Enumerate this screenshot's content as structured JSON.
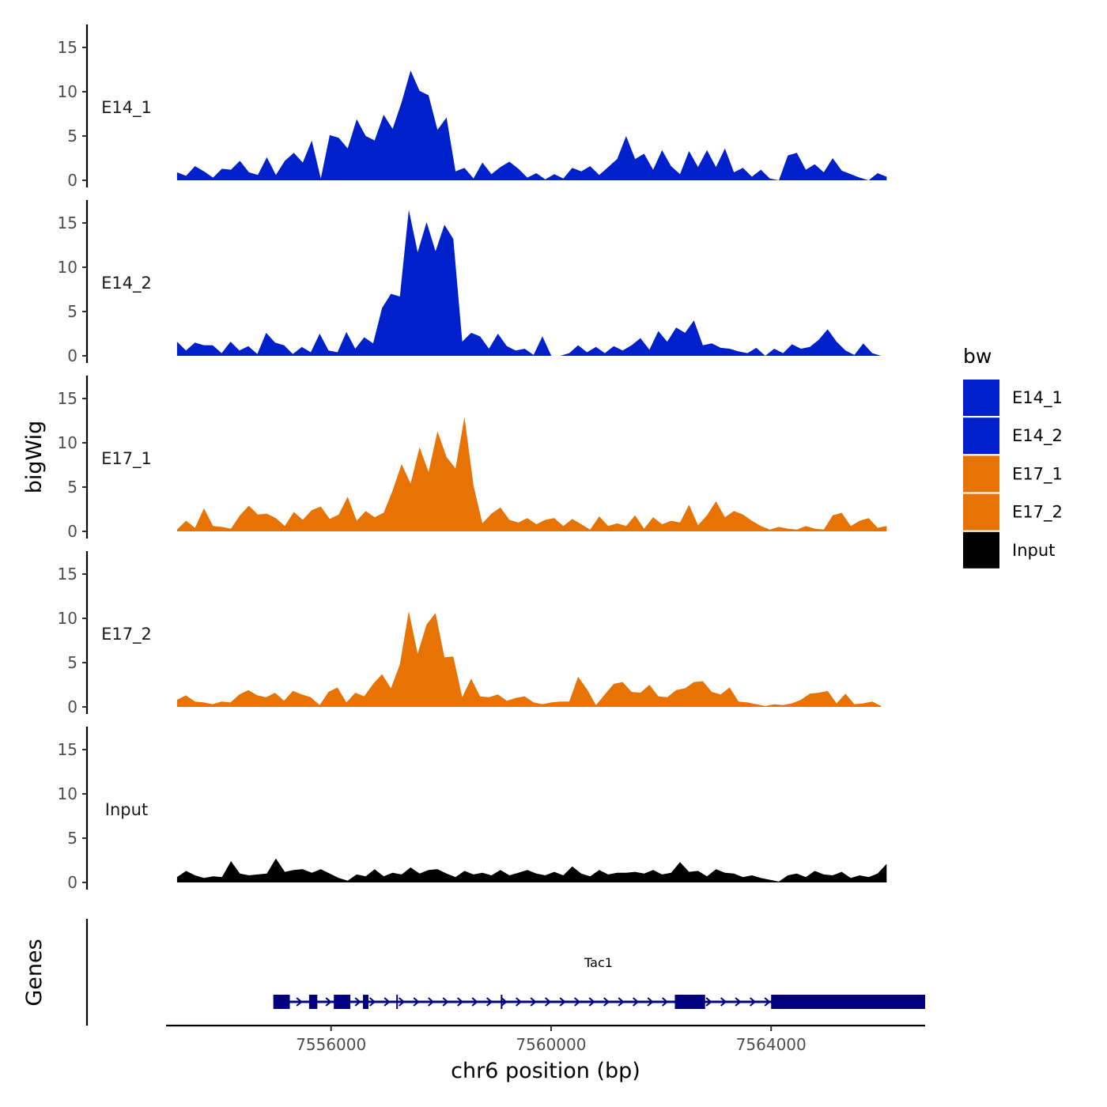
{
  "chart_data": {
    "type": "area",
    "ylabel": "bigWig",
    "xlabel": "chr6 position (bp)",
    "chromosome": "chr6",
    "xlim": [
      7553000,
      7566800
    ],
    "ylim": [
      0,
      17.5
    ],
    "yticks": [
      0,
      5,
      10,
      15
    ],
    "xticks": [
      7556000,
      7560000,
      7564000
    ],
    "xtick_labels": [
      "7556000",
      "7560000",
      "7564000"
    ],
    "legend": {
      "title": "bw",
      "position": "right",
      "entries": [
        {
          "name": "E14_1",
          "color": "#0020CC"
        },
        {
          "name": "E14_2",
          "color": "#0020CC"
        },
        {
          "name": "E17_1",
          "color": "#E87305"
        },
        {
          "name": "E17_2",
          "color": "#E87305"
        },
        {
          "name": "Input",
          "color": "#000000"
        }
      ]
    },
    "series": [
      {
        "name": "E14_1",
        "color": "#0020CC",
        "x_start": 7553200,
        "x_end": 7566100,
        "values": [
          0.9,
          0.5,
          1.6,
          1.0,
          0.3,
          1.3,
          1.2,
          2.2,
          0.9,
          0.6,
          2.6,
          0.6,
          2.2,
          3.1,
          2.0,
          4.5,
          0.2,
          5.1,
          4.8,
          3.6,
          6.9,
          5.0,
          4.5,
          7.4,
          5.8,
          8.8,
          12.4,
          10.1,
          9.6,
          5.7,
          7.1,
          1.0,
          1.4,
          0.2,
          2.0,
          0.7,
          1.5,
          2.1,
          1.3,
          0.3,
          0.8,
          0.1,
          0.7,
          0.2,
          1.4,
          1.0,
          1.6,
          0.6,
          1.5,
          2.4,
          5.0,
          2.4,
          3.0,
          1.2,
          3.4,
          1.6,
          0.7,
          3.3,
          1.5,
          3.4,
          1.5,
          3.6,
          0.9,
          1.4,
          0.4,
          1.2,
          0.2,
          0.0,
          2.8,
          3.1,
          1.2,
          1.8,
          0.9,
          2.5,
          1.1,
          0.7,
          0.3,
          0.0,
          0.8,
          0.4
        ]
      },
      {
        "name": "E14_2",
        "color": "#0020CC",
        "x_start": 7553200,
        "x_end": 7566000,
        "values": [
          1.6,
          0.6,
          1.5,
          1.2,
          1.2,
          0.3,
          1.6,
          0.6,
          1.1,
          0.2,
          2.6,
          1.5,
          1.2,
          0.2,
          1.0,
          0.4,
          2.5,
          0.6,
          0.4,
          2.7,
          0.8,
          2.1,
          1.4,
          5.4,
          7.0,
          6.7,
          16.5,
          11.7,
          15.1,
          11.8,
          14.8,
          13.2,
          1.6,
          2.6,
          2.2,
          0.8,
          2.5,
          1.1,
          0.6,
          0.8,
          0.1,
          2.2,
          0.0,
          0.0,
          0.3,
          1.2,
          0.4,
          1.0,
          0.3,
          1.1,
          0.6,
          1.2,
          2.0,
          0.7,
          2.8,
          1.6,
          3.2,
          2.6,
          4.0,
          1.2,
          1.4,
          0.9,
          0.8,
          0.5,
          0.3,
          0.9,
          0.0,
          0.8,
          0.3,
          1.3,
          0.8,
          1.0,
          1.8,
          3.0,
          1.6,
          0.6,
          0.1,
          1.4,
          0.3,
          0.0
        ]
      },
      {
        "name": "E17_1",
        "color": "#E87305",
        "x_start": 7553200,
        "x_end": 7566100,
        "values": [
          0.2,
          1.2,
          0.4,
          2.6,
          0.6,
          0.5,
          0.3,
          1.8,
          2.9,
          1.9,
          2.0,
          1.5,
          0.6,
          2.2,
          1.3,
          2.4,
          2.8,
          1.4,
          1.9,
          3.9,
          1.2,
          2.3,
          1.6,
          2.1,
          4.6,
          7.6,
          5.4,
          9.5,
          6.7,
          11.3,
          8.4,
          7.1,
          12.9,
          5.2,
          0.9,
          2.0,
          2.7,
          1.3,
          1.0,
          1.5,
          0.8,
          1.3,
          1.5,
          0.6,
          1.4,
          0.8,
          0.2,
          1.7,
          0.6,
          0.9,
          0.6,
          1.8,
          0.3,
          1.6,
          0.8,
          1.2,
          1.0,
          3.0,
          0.7,
          1.8,
          3.4,
          1.6,
          2.3,
          1.9,
          1.2,
          0.6,
          0.2,
          0.5,
          0.3,
          0.2,
          0.6,
          0.3,
          0.2,
          1.8,
          2.1,
          0.6,
          1.2,
          1.5,
          0.4,
          0.6
        ]
      },
      {
        "name": "E17_2",
        "color": "#E87305",
        "x_start": 7553200,
        "x_end": 7566000,
        "values": [
          0.8,
          1.3,
          0.6,
          0.5,
          0.3,
          0.6,
          0.5,
          1.4,
          1.9,
          1.3,
          1.1,
          1.6,
          0.7,
          1.8,
          1.4,
          1.1,
          0.2,
          1.7,
          2.2,
          0.5,
          1.6,
          1.2,
          2.6,
          3.7,
          2.1,
          4.8,
          10.8,
          6.0,
          9.3,
          10.6,
          5.6,
          5.7,
          1.1,
          3.2,
          1.2,
          1.1,
          1.4,
          0.7,
          1.0,
          1.2,
          0.5,
          0.3,
          0.5,
          0.6,
          0.6,
          3.4,
          2.0,
          0.2,
          1.4,
          2.6,
          2.8,
          1.7,
          1.6,
          2.5,
          1.2,
          1.1,
          1.9,
          2.1,
          2.8,
          2.9,
          1.7,
          1.4,
          2.2,
          0.6,
          0.5,
          0.3,
          0.1,
          0.3,
          0.2,
          0.4,
          0.8,
          1.5,
          1.6,
          1.8,
          0.4,
          1.5,
          0.3,
          0.4,
          0.6,
          0.1
        ]
      },
      {
        "name": "Input",
        "color": "#000000",
        "x_start": 7553200,
        "x_end": 7566100,
        "values": [
          0.6,
          1.3,
          0.8,
          0.5,
          0.7,
          0.6,
          2.4,
          1.0,
          0.8,
          0.9,
          1.0,
          2.7,
          1.2,
          1.4,
          1.5,
          1.1,
          1.5,
          1.0,
          0.5,
          0.2,
          0.9,
          0.7,
          1.5,
          0.7,
          1.1,
          0.9,
          1.7,
          1.0,
          1.4,
          1.5,
          1.0,
          0.6,
          1.3,
          0.9,
          1.1,
          0.8,
          1.4,
          0.8,
          1.1,
          1.4,
          1.0,
          0.8,
          1.2,
          0.8,
          1.8,
          1.0,
          0.7,
          1.4,
          0.9,
          1.1,
          1.1,
          1.2,
          1.0,
          1.4,
          0.9,
          1.1,
          2.3,
          1.2,
          1.3,
          0.7,
          1.5,
          1.1,
          1.0,
          0.6,
          0.8,
          0.5,
          0.3,
          0.1,
          0.8,
          1.0,
          0.6,
          1.3,
          0.9,
          0.8,
          1.2,
          0.5,
          0.8,
          0.6,
          1.0,
          2.1
        ]
      }
    ],
    "gene_track": {
      "label": "Genes",
      "gene_name": "Tac1",
      "color": "#000080",
      "strand": "+",
      "span": [
        7554950,
        7566800
      ],
      "exons": [
        [
          7554950,
          7555250
        ],
        [
          7555600,
          7555750
        ],
        [
          7556050,
          7556350
        ],
        [
          7556580,
          7556680
        ],
        [
          7562250,
          7562800
        ],
        [
          7564000,
          7566800
        ]
      ]
    }
  }
}
